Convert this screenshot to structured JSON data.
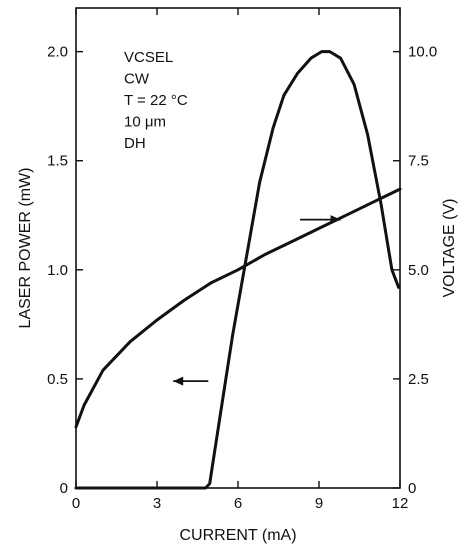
{
  "chart_data": {
    "type": "line",
    "xlabel": "CURRENT (mA)",
    "ylabel_left": "LASER POWER (mW)",
    "ylabel_right": "VOLTAGE (V)",
    "xlim": [
      0,
      12
    ],
    "ylim_left": [
      0,
      2.2
    ],
    "ylim_right": [
      0,
      11
    ],
    "x_ticks": [
      0,
      3,
      6,
      9,
      12
    ],
    "x_tick_labels": [
      "0",
      "3",
      "6",
      "9",
      "12"
    ],
    "y_left_ticks": [
      0,
      0.5,
      1.0,
      1.5,
      2.0
    ],
    "y_left_tick_labels": [
      "0",
      "0.5",
      "1.0",
      "1.5",
      "2.0"
    ],
    "y_right_ticks": [
      0,
      2.5,
      5.0,
      7.5,
      10.0
    ],
    "y_right_tick_labels": [
      "0",
      "2.5",
      "5.0",
      "7.5",
      "10.0"
    ],
    "annotation_lines": [
      "VCSEL",
      "CW",
      "T = 22 °C",
      "10 μm",
      "DH"
    ],
    "grid": false,
    "series": [
      {
        "axis": "left",
        "x": [
          0,
          4.8,
          4.95,
          5.3,
          5.8,
          6.3,
          6.8,
          7.3,
          7.7,
          8.2,
          8.7,
          9.1,
          9.4,
          9.8,
          10.3,
          10.8,
          11.3,
          11.7,
          11.95
        ],
        "y": [
          0,
          0,
          0.02,
          0.3,
          0.7,
          1.05,
          1.4,
          1.65,
          1.8,
          1.9,
          1.97,
          2.0,
          2.0,
          1.97,
          1.85,
          1.62,
          1.3,
          1.0,
          0.92
        ]
      },
      {
        "axis": "right",
        "x": [
          0,
          0.3,
          1,
          2,
          3,
          4,
          5,
          6,
          7,
          8,
          9,
          10,
          11,
          12
        ],
        "y": [
          1.4,
          1.9,
          2.7,
          3.35,
          3.85,
          4.3,
          4.7,
          5.0,
          5.35,
          5.65,
          5.95,
          6.25,
          6.55,
          6.85
        ]
      }
    ],
    "arrows": [
      {
        "series_axis": "left",
        "direction": "left",
        "x_from": 4.9,
        "x_to": 3.6,
        "y": 0.49
      },
      {
        "series_axis": "right",
        "direction": "right",
        "x_from": 8.3,
        "x_to": 9.8,
        "y_right": 6.15
      }
    ]
  }
}
